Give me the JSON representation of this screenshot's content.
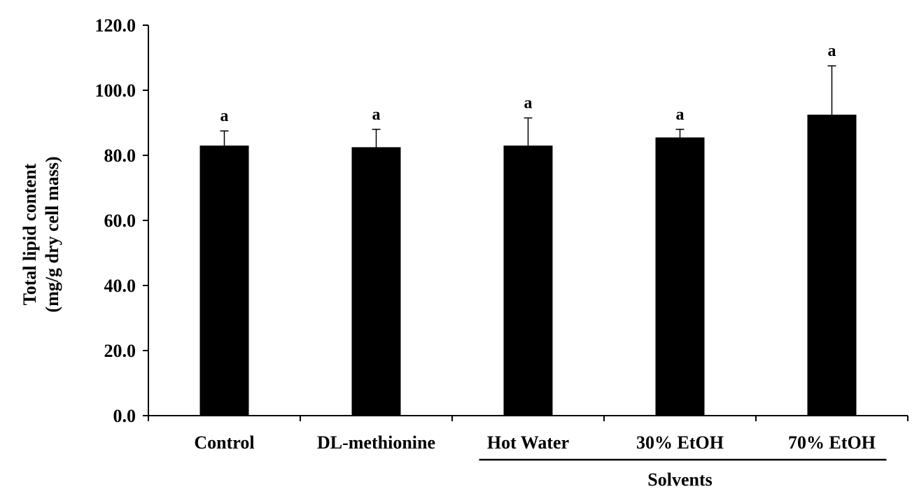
{
  "chart_data": {
    "type": "bar",
    "categories": [
      "Control",
      "DL-methionine",
      "Hot Water",
      "30% EtOH",
      "70% EtOH"
    ],
    "values": [
      83.0,
      82.5,
      83.0,
      85.5,
      92.5
    ],
    "errors": [
      4.5,
      5.5,
      8.5,
      2.5,
      15.0
    ],
    "significance": [
      "a",
      "a",
      "a",
      "a",
      "a"
    ],
    "ylabel_line1": "Total lipid content",
    "ylabel_line2": "(mg/g dry cell mass)",
    "ylim": [
      0,
      120
    ],
    "yticks": [
      0,
      20,
      40,
      60,
      80,
      100,
      120
    ],
    "ytick_labels": [
      "0.0",
      "20.0",
      "40.0",
      "60.0",
      "80.0",
      "100.0",
      "120.0"
    ],
    "group": {
      "label": "Solvents",
      "start_category": "Hot Water",
      "end_category": "70% EtOH"
    },
    "bar_color": "#000000",
    "grid": false,
    "legend": "none"
  }
}
